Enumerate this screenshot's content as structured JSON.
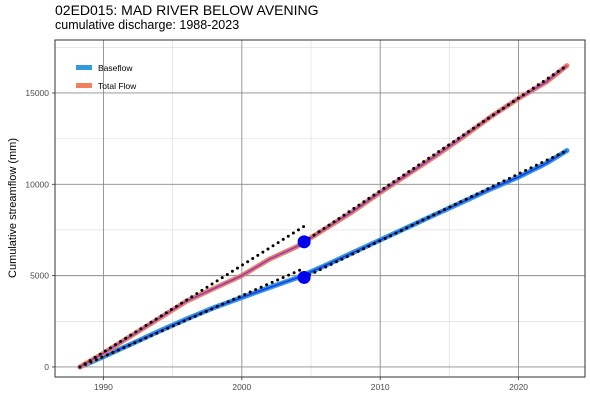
{
  "chart_data": {
    "type": "line",
    "title": "02ED015: MAD RIVER BELOW AVENING",
    "subtitle": "cumulative discharge: 1988-2023",
    "ylabel": "Cumulative streamflow  (mm)",
    "xlabel": "",
    "xlim": [
      1986.5,
      2024.8
    ],
    "ylim": [
      -550,
      17900
    ],
    "x_ticks": [
      1990,
      2000,
      2010,
      2020
    ],
    "x_tick_labels": [
      "1990",
      "2000",
      "2010",
      "2020"
    ],
    "y_ticks": [
      0,
      5000,
      10000,
      15000
    ],
    "y_tick_labels": [
      "0",
      "5000",
      "10000",
      "15000"
    ],
    "grid": true,
    "legend_position": "top-left",
    "series": [
      {
        "name": "Baseflow",
        "color": "#3399dd",
        "fit_color": "#1a3cf0",
        "x": [
          1988.3,
          1990,
          1992,
          1994,
          1996,
          1998,
          2000,
          2002,
          2004,
          2006,
          2008,
          2010,
          2012,
          2014,
          2016,
          2018,
          2020,
          2022,
          2023.5
        ],
        "y": [
          0,
          560,
          1250,
          1950,
          2620,
          3250,
          3800,
          4350,
          4880,
          5550,
          6250,
          6950,
          7650,
          8350,
          9050,
          9750,
          10400,
          11150,
          11850
        ]
      },
      {
        "name": "Total Flow",
        "color": "#f08060",
        "fit_color": "#8a3cc8",
        "x": [
          1988.3,
          1990,
          1992,
          1994,
          1996,
          1998,
          2000,
          2002,
          2004,
          2006,
          2008,
          2010,
          2012,
          2014,
          2016,
          2018,
          2020,
          2022,
          2023.5
        ],
        "y": [
          0,
          750,
          1700,
          2650,
          3600,
          4300,
          5000,
          5900,
          6600,
          7550,
          8500,
          9550,
          10550,
          11550,
          12600,
          13700,
          14700,
          15600,
          16500
        ]
      }
    ],
    "trend_lines": [
      {
        "x": [
          1988.3,
          2004.5
        ],
        "y": [
          0,
          7700
        ]
      },
      {
        "x": [
          2004.5,
          2023.5
        ],
        "y": [
          6850,
          16500
        ]
      },
      {
        "x": [
          1988.3,
          2004.5
        ],
        "y": [
          0,
          5400
        ]
      },
      {
        "x": [
          2004.5,
          2023.5
        ],
        "y": [
          4900,
          11850
        ]
      }
    ],
    "breakpoints": [
      {
        "x": 2004.5,
        "y": 6850
      },
      {
        "x": 2004.5,
        "y": 4900
      }
    ],
    "breakpoint_color": "#0000ee"
  }
}
